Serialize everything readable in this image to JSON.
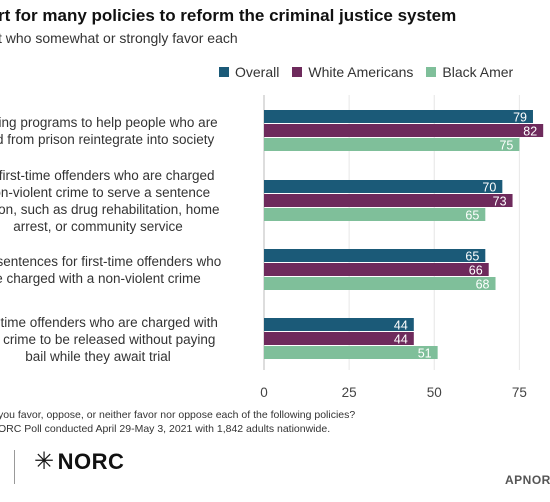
{
  "title": "rt for many policies to reform the criminal justice system",
  "subtitle": "t who somewhat or strongly favor each",
  "legend": [
    {
      "label": "Overall",
      "color": "#1b5a78"
    },
    {
      "label": "White Americans",
      "color": "#6e2a5c"
    },
    {
      "label": "Black Amer",
      "color": "#7fbf9a"
    }
  ],
  "chart_data": {
    "type": "bar",
    "orientation": "horizontal",
    "categories": [
      [
        "lishing programs to help people who are",
        "sed from prison reintegrate into society"
      ],
      [
        "all first-time offenders who are charged",
        "non-violent crime to serve a sentence",
        "prison, such as drug rehabilitation, home",
        "arrest, or community service"
      ],
      [
        "ing sentences for first-time offenders who",
        "e charged with a non-violent crime"
      ],
      [
        "irst-time offenders who are charged with",
        "ent crime to be released without paying",
        "bail while they await trial"
      ]
    ],
    "series": [
      {
        "name": "Overall",
        "color": "#1b5a78",
        "values": [
          79,
          70,
          65,
          44
        ]
      },
      {
        "name": "White Americans",
        "color": "#6e2a5c",
        "values": [
          82,
          73,
          66,
          44
        ]
      },
      {
        "name": "Black Amer",
        "color": "#7fbf9a",
        "values": [
          75,
          65,
          68,
          51
        ]
      }
    ],
    "xticks": [
      0,
      25,
      50,
      75
    ],
    "xlim": [
      0,
      84
    ],
    "grid": true
  },
  "footnote": {
    "question": "you favor, oppose, or neither favor nor oppose each of the following policies?",
    "source": "ORC Poll conducted April 29-May 3, 2021 with 1,842 adults nationwide."
  },
  "logo": {
    "mark": "✳",
    "text": "NORC"
  },
  "brand": "APNOR"
}
